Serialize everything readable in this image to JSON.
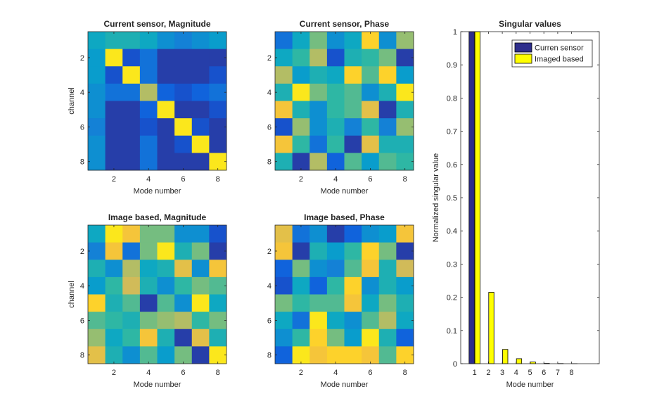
{
  "colors": {
    "parula": [
      "#352A87",
      "#0F5CDD",
      "#1481D6",
      "#06A4CA",
      "#2EB7A4",
      "#87BF77",
      "#D1BB59",
      "#FEC832",
      "#F9FB0E"
    ],
    "bar_series_1": "#2E2E8C",
    "bar_series_2": "#FFFF00",
    "axis": "#262626"
  },
  "chart_data": [
    {
      "id": "cs-mag",
      "type": "heatmap",
      "title": "Current sensor, Magnitude",
      "xlabel": "Mode number",
      "ylabel": "channel",
      "xticks": [
        2,
        4,
        6,
        8
      ],
      "yticks": [
        2,
        4,
        6,
        8
      ],
      "values": [
        [
          0.4,
          0.45,
          0.45,
          0.4,
          0.3,
          0.25,
          0.3,
          0.35
        ],
        [
          0.35,
          0.95,
          0.1,
          0.2,
          0.05,
          0.05,
          0.05,
          0.05
        ],
        [
          0.35,
          0.1,
          0.95,
          0.2,
          0.05,
          0.05,
          0.05,
          0.1
        ],
        [
          0.3,
          0.2,
          0.2,
          0.7,
          0.15,
          0.1,
          0.15,
          0.2
        ],
        [
          0.3,
          0.05,
          0.05,
          0.15,
          0.95,
          0.05,
          0.05,
          0.1
        ],
        [
          0.25,
          0.05,
          0.05,
          0.1,
          0.05,
          0.95,
          0.1,
          0.05
        ],
        [
          0.3,
          0.05,
          0.05,
          0.2,
          0.05,
          0.1,
          0.95,
          0.05
        ],
        [
          0.3,
          0.05,
          0.05,
          0.2,
          0.05,
          0.05,
          0.05,
          0.95
        ]
      ]
    },
    {
      "id": "cs-phase",
      "type": "heatmap",
      "title": "Current sensor, Phase",
      "xlabel": "Mode number",
      "ylabel": "",
      "xticks": [
        2,
        4,
        6,
        8
      ],
      "yticks": [
        2,
        4,
        6,
        8
      ],
      "values": [
        [
          0.2,
          0.4,
          0.6,
          0.3,
          0.4,
          0.9,
          0.3,
          0.65
        ],
        [
          0.4,
          0.5,
          0.7,
          0.1,
          0.45,
          0.5,
          0.6,
          0.05
        ],
        [
          0.7,
          0.35,
          0.45,
          0.4,
          0.9,
          0.55,
          0.9,
          0.35
        ],
        [
          0.45,
          0.95,
          0.6,
          0.5,
          0.55,
          0.3,
          0.45,
          0.95
        ],
        [
          0.85,
          0.45,
          0.3,
          0.5,
          0.55,
          0.8,
          0.05,
          0.45
        ],
        [
          0.1,
          0.65,
          0.3,
          0.45,
          0.25,
          0.5,
          0.25,
          0.65
        ],
        [
          0.85,
          0.5,
          0.2,
          0.5,
          0.05,
          0.8,
          0.45,
          0.45
        ],
        [
          0.45,
          0.05,
          0.7,
          0.15,
          0.55,
          0.35,
          0.55,
          0.5
        ]
      ]
    },
    {
      "id": "ib-mag",
      "type": "heatmap",
      "title": "Image based, Magnitude",
      "xlabel": "Mode number",
      "ylabel": "channel",
      "xticks": [
        2,
        4,
        6,
        8
      ],
      "yticks": [
        2,
        4,
        6,
        8
      ],
      "values": [
        [
          0.4,
          0.95,
          0.85,
          0.6,
          0.6,
          0.3,
          0.3,
          0.1
        ],
        [
          0.25,
          0.85,
          0.2,
          0.6,
          0.95,
          0.45,
          0.6,
          0.05
        ],
        [
          0.45,
          0.3,
          0.7,
          0.4,
          0.45,
          0.8,
          0.3,
          0.85
        ],
        [
          0.35,
          0.5,
          0.75,
          0.45,
          0.3,
          0.5,
          0.6,
          0.55
        ],
        [
          0.9,
          0.45,
          0.55,
          0.05,
          0.55,
          0.3,
          0.95,
          0.4
        ],
        [
          0.55,
          0.5,
          0.45,
          0.6,
          0.65,
          0.7,
          0.5,
          0.6
        ],
        [
          0.65,
          0.4,
          0.5,
          0.85,
          0.45,
          0.05,
          0.8,
          0.45
        ],
        [
          0.8,
          0.45,
          0.3,
          0.55,
          0.35,
          0.6,
          0.05,
          0.95
        ]
      ]
    },
    {
      "id": "ib-phase",
      "type": "heatmap",
      "title": "Image based, Phase",
      "xlabel": "Mode number",
      "ylabel": "",
      "xticks": [
        2,
        4,
        6,
        8
      ],
      "yticks": [
        2,
        4,
        6,
        8
      ],
      "values": [
        [
          0.8,
          0.2,
          0.3,
          0.05,
          0.15,
          0.3,
          0.35,
          0.85
        ],
        [
          0.85,
          0.05,
          0.45,
          0.35,
          0.5,
          0.9,
          0.6,
          0.05
        ],
        [
          0.15,
          0.6,
          0.3,
          0.25,
          0.55,
          0.85,
          0.45,
          0.75
        ],
        [
          0.1,
          0.4,
          0.15,
          0.5,
          0.9,
          0.3,
          0.45,
          0.35
        ],
        [
          0.6,
          0.5,
          0.55,
          0.55,
          0.85,
          0.4,
          0.6,
          0.45
        ],
        [
          0.4,
          0.2,
          0.95,
          0.4,
          0.3,
          0.55,
          0.7,
          0.4
        ],
        [
          0.3,
          0.5,
          0.9,
          0.6,
          0.35,
          0.95,
          0.45,
          0.15
        ],
        [
          0.15,
          0.95,
          0.85,
          0.9,
          0.9,
          0.85,
          0.55,
          0.9
        ]
      ]
    },
    {
      "id": "sv-bar",
      "type": "bar",
      "title": "Singular values",
      "xlabel": "Mode number",
      "ylabel": "Normalized singular value",
      "categories": [
        1,
        2,
        3,
        4,
        5,
        6,
        7,
        8
      ],
      "xlim": [
        0,
        10
      ],
      "ylim": [
        0,
        1
      ],
      "yticks": [
        0,
        0.1,
        0.2,
        0.3,
        0.4,
        0.5,
        0.6,
        0.7,
        0.8,
        0.9,
        1
      ],
      "series": [
        {
          "name": "Curren sensor",
          "values": [
            1,
            0,
            0,
            0,
            0,
            0,
            0,
            0
          ]
        },
        {
          "name": "Imaged based",
          "values": [
            1,
            0.215,
            0.043,
            0.015,
            0.005,
            0.001,
            0.0005,
            0.0002
          ]
        }
      ],
      "legend": "top-right"
    }
  ]
}
